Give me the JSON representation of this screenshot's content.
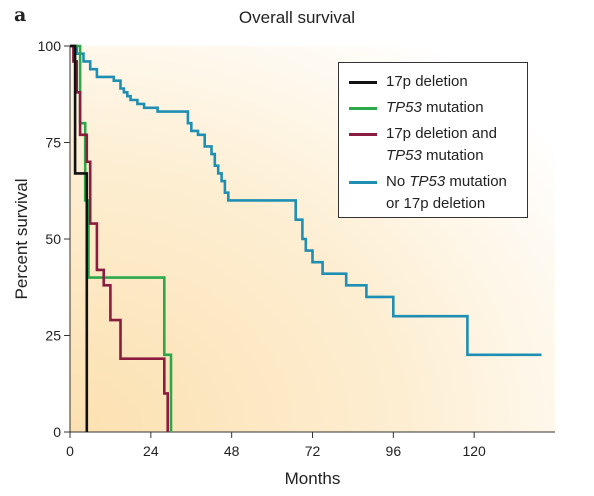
{
  "panel_letter": "a",
  "chart_data": {
    "type": "line",
    "subtype": "kaplan-meier step curve",
    "title": "Overall survival",
    "xlabel": "Months",
    "ylabel": "Percent survival",
    "xlim": [
      0,
      144
    ],
    "ylim": [
      0,
      100
    ],
    "xticks": [
      0,
      24,
      48,
      72,
      96,
      120
    ],
    "yticks": [
      0,
      25,
      50,
      75,
      100
    ],
    "grid": false,
    "legend_position": "top-right",
    "series": [
      {
        "name": "17p deletion",
        "color": "#111111",
        "points": [
          [
            0,
            100
          ],
          [
            1.5,
            100
          ],
          [
            1.5,
            67
          ],
          [
            5,
            67
          ],
          [
            5,
            0
          ]
        ]
      },
      {
        "name": "TP53 mutation",
        "color": "#2aa84a",
        "points": [
          [
            0,
            100
          ],
          [
            3,
            100
          ],
          [
            3,
            80
          ],
          [
            4.5,
            80
          ],
          [
            4.5,
            60
          ],
          [
            5.5,
            60
          ],
          [
            5.5,
            40
          ],
          [
            28,
            40
          ],
          [
            28,
            20
          ],
          [
            30,
            20
          ],
          [
            30,
            0
          ]
        ]
      },
      {
        "name": "17p deletion and TP53 mutation",
        "color": "#8a1d3f",
        "points": [
          [
            0,
            100
          ],
          [
            1,
            100
          ],
          [
            1,
            96
          ],
          [
            2,
            96
          ],
          [
            2,
            88
          ],
          [
            3,
            88
          ],
          [
            3,
            77
          ],
          [
            5,
            77
          ],
          [
            5,
            70
          ],
          [
            6,
            70
          ],
          [
            6,
            54
          ],
          [
            8,
            54
          ],
          [
            8,
            42
          ],
          [
            10,
            42
          ],
          [
            10,
            38
          ],
          [
            12,
            38
          ],
          [
            12,
            29
          ],
          [
            15,
            29
          ],
          [
            15,
            19
          ],
          [
            28,
            19
          ],
          [
            28,
            10
          ],
          [
            29,
            10
          ],
          [
            29,
            0
          ]
        ]
      },
      {
        "name": "No TP53 mutation or 17p deletion",
        "color": "#1e8fb3",
        "points": [
          [
            0,
            100
          ],
          [
            2,
            100
          ],
          [
            2,
            98
          ],
          [
            4,
            98
          ],
          [
            4,
            96
          ],
          [
            6,
            96
          ],
          [
            6,
            94
          ],
          [
            8,
            94
          ],
          [
            8,
            92
          ],
          [
            13,
            92
          ],
          [
            13,
            91
          ],
          [
            15,
            91
          ],
          [
            15,
            89
          ],
          [
            16,
            89
          ],
          [
            16,
            88
          ],
          [
            17,
            88
          ],
          [
            17,
            87
          ],
          [
            18,
            87
          ],
          [
            18,
            86
          ],
          [
            20,
            86
          ],
          [
            20,
            85
          ],
          [
            22,
            85
          ],
          [
            22,
            84
          ],
          [
            26,
            84
          ],
          [
            26,
            83
          ],
          [
            35,
            83
          ],
          [
            35,
            80
          ],
          [
            36,
            80
          ],
          [
            36,
            78
          ],
          [
            38,
            78
          ],
          [
            38,
            77
          ],
          [
            40,
            77
          ],
          [
            40,
            74
          ],
          [
            42,
            74
          ],
          [
            42,
            72
          ],
          [
            43,
            72
          ],
          [
            43,
            69
          ],
          [
            44,
            69
          ],
          [
            44,
            67
          ],
          [
            45,
            67
          ],
          [
            45,
            65
          ],
          [
            46,
            65
          ],
          [
            46,
            62
          ],
          [
            47,
            62
          ],
          [
            47,
            60
          ],
          [
            67,
            60
          ],
          [
            67,
            55
          ],
          [
            69,
            55
          ],
          [
            69,
            50
          ],
          [
            70,
            50
          ],
          [
            70,
            47
          ],
          [
            72,
            47
          ],
          [
            72,
            44
          ],
          [
            75,
            44
          ],
          [
            75,
            41
          ],
          [
            82,
            41
          ],
          [
            82,
            38
          ],
          [
            88,
            38
          ],
          [
            88,
            35
          ],
          [
            96,
            35
          ],
          [
            96,
            30
          ],
          [
            118,
            30
          ],
          [
            118,
            20
          ],
          [
            140,
            20
          ]
        ]
      }
    ]
  }
}
